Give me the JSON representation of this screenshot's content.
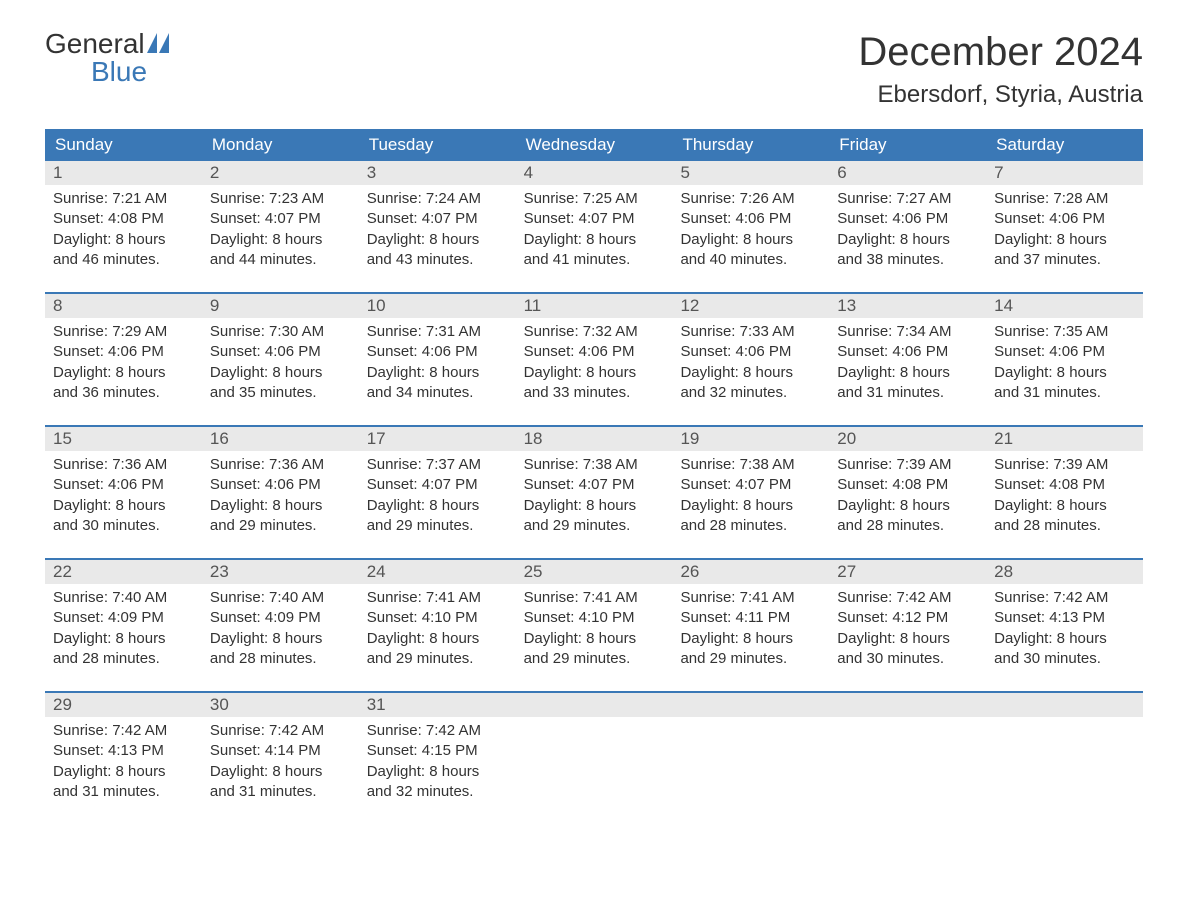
{
  "brand": {
    "top": "General",
    "bottom": "Blue"
  },
  "title": "December 2024",
  "location": "Ebersdorf, Styria, Austria",
  "colors": {
    "header_bg": "#3a78b6",
    "header_text": "#ffffff",
    "daynum_bg": "#e9e9e9",
    "week_border": "#3a78b6",
    "body_bg": "#ffffff",
    "text": "#333333"
  },
  "day_names": [
    "Sunday",
    "Monday",
    "Tuesday",
    "Wednesday",
    "Thursday",
    "Friday",
    "Saturday"
  ],
  "weeks": [
    [
      {
        "n": "1",
        "sr": "Sunrise: 7:21 AM",
        "ss": "Sunset: 4:08 PM",
        "d1": "Daylight: 8 hours",
        "d2": "and 46 minutes."
      },
      {
        "n": "2",
        "sr": "Sunrise: 7:23 AM",
        "ss": "Sunset: 4:07 PM",
        "d1": "Daylight: 8 hours",
        "d2": "and 44 minutes."
      },
      {
        "n": "3",
        "sr": "Sunrise: 7:24 AM",
        "ss": "Sunset: 4:07 PM",
        "d1": "Daylight: 8 hours",
        "d2": "and 43 minutes."
      },
      {
        "n": "4",
        "sr": "Sunrise: 7:25 AM",
        "ss": "Sunset: 4:07 PM",
        "d1": "Daylight: 8 hours",
        "d2": "and 41 minutes."
      },
      {
        "n": "5",
        "sr": "Sunrise: 7:26 AM",
        "ss": "Sunset: 4:06 PM",
        "d1": "Daylight: 8 hours",
        "d2": "and 40 minutes."
      },
      {
        "n": "6",
        "sr": "Sunrise: 7:27 AM",
        "ss": "Sunset: 4:06 PM",
        "d1": "Daylight: 8 hours",
        "d2": "and 38 minutes."
      },
      {
        "n": "7",
        "sr": "Sunrise: 7:28 AM",
        "ss": "Sunset: 4:06 PM",
        "d1": "Daylight: 8 hours",
        "d2": "and 37 minutes."
      }
    ],
    [
      {
        "n": "8",
        "sr": "Sunrise: 7:29 AM",
        "ss": "Sunset: 4:06 PM",
        "d1": "Daylight: 8 hours",
        "d2": "and 36 minutes."
      },
      {
        "n": "9",
        "sr": "Sunrise: 7:30 AM",
        "ss": "Sunset: 4:06 PM",
        "d1": "Daylight: 8 hours",
        "d2": "and 35 minutes."
      },
      {
        "n": "10",
        "sr": "Sunrise: 7:31 AM",
        "ss": "Sunset: 4:06 PM",
        "d1": "Daylight: 8 hours",
        "d2": "and 34 minutes."
      },
      {
        "n": "11",
        "sr": "Sunrise: 7:32 AM",
        "ss": "Sunset: 4:06 PM",
        "d1": "Daylight: 8 hours",
        "d2": "and 33 minutes."
      },
      {
        "n": "12",
        "sr": "Sunrise: 7:33 AM",
        "ss": "Sunset: 4:06 PM",
        "d1": "Daylight: 8 hours",
        "d2": "and 32 minutes."
      },
      {
        "n": "13",
        "sr": "Sunrise: 7:34 AM",
        "ss": "Sunset: 4:06 PM",
        "d1": "Daylight: 8 hours",
        "d2": "and 31 minutes."
      },
      {
        "n": "14",
        "sr": "Sunrise: 7:35 AM",
        "ss": "Sunset: 4:06 PM",
        "d1": "Daylight: 8 hours",
        "d2": "and 31 minutes."
      }
    ],
    [
      {
        "n": "15",
        "sr": "Sunrise: 7:36 AM",
        "ss": "Sunset: 4:06 PM",
        "d1": "Daylight: 8 hours",
        "d2": "and 30 minutes."
      },
      {
        "n": "16",
        "sr": "Sunrise: 7:36 AM",
        "ss": "Sunset: 4:06 PM",
        "d1": "Daylight: 8 hours",
        "d2": "and 29 minutes."
      },
      {
        "n": "17",
        "sr": "Sunrise: 7:37 AM",
        "ss": "Sunset: 4:07 PM",
        "d1": "Daylight: 8 hours",
        "d2": "and 29 minutes."
      },
      {
        "n": "18",
        "sr": "Sunrise: 7:38 AM",
        "ss": "Sunset: 4:07 PM",
        "d1": "Daylight: 8 hours",
        "d2": "and 29 minutes."
      },
      {
        "n": "19",
        "sr": "Sunrise: 7:38 AM",
        "ss": "Sunset: 4:07 PM",
        "d1": "Daylight: 8 hours",
        "d2": "and 28 minutes."
      },
      {
        "n": "20",
        "sr": "Sunrise: 7:39 AM",
        "ss": "Sunset: 4:08 PM",
        "d1": "Daylight: 8 hours",
        "d2": "and 28 minutes."
      },
      {
        "n": "21",
        "sr": "Sunrise: 7:39 AM",
        "ss": "Sunset: 4:08 PM",
        "d1": "Daylight: 8 hours",
        "d2": "and 28 minutes."
      }
    ],
    [
      {
        "n": "22",
        "sr": "Sunrise: 7:40 AM",
        "ss": "Sunset: 4:09 PM",
        "d1": "Daylight: 8 hours",
        "d2": "and 28 minutes."
      },
      {
        "n": "23",
        "sr": "Sunrise: 7:40 AM",
        "ss": "Sunset: 4:09 PM",
        "d1": "Daylight: 8 hours",
        "d2": "and 28 minutes."
      },
      {
        "n": "24",
        "sr": "Sunrise: 7:41 AM",
        "ss": "Sunset: 4:10 PM",
        "d1": "Daylight: 8 hours",
        "d2": "and 29 minutes."
      },
      {
        "n": "25",
        "sr": "Sunrise: 7:41 AM",
        "ss": "Sunset: 4:10 PM",
        "d1": "Daylight: 8 hours",
        "d2": "and 29 minutes."
      },
      {
        "n": "26",
        "sr": "Sunrise: 7:41 AM",
        "ss": "Sunset: 4:11 PM",
        "d1": "Daylight: 8 hours",
        "d2": "and 29 minutes."
      },
      {
        "n": "27",
        "sr": "Sunrise: 7:42 AM",
        "ss": "Sunset: 4:12 PM",
        "d1": "Daylight: 8 hours",
        "d2": "and 30 minutes."
      },
      {
        "n": "28",
        "sr": "Sunrise: 7:42 AM",
        "ss": "Sunset: 4:13 PM",
        "d1": "Daylight: 8 hours",
        "d2": "and 30 minutes."
      }
    ],
    [
      {
        "n": "29",
        "sr": "Sunrise: 7:42 AM",
        "ss": "Sunset: 4:13 PM",
        "d1": "Daylight: 8 hours",
        "d2": "and 31 minutes."
      },
      {
        "n": "30",
        "sr": "Sunrise: 7:42 AM",
        "ss": "Sunset: 4:14 PM",
        "d1": "Daylight: 8 hours",
        "d2": "and 31 minutes."
      },
      {
        "n": "31",
        "sr": "Sunrise: 7:42 AM",
        "ss": "Sunset: 4:15 PM",
        "d1": "Daylight: 8 hours",
        "d2": "and 32 minutes."
      },
      null,
      null,
      null,
      null
    ]
  ]
}
